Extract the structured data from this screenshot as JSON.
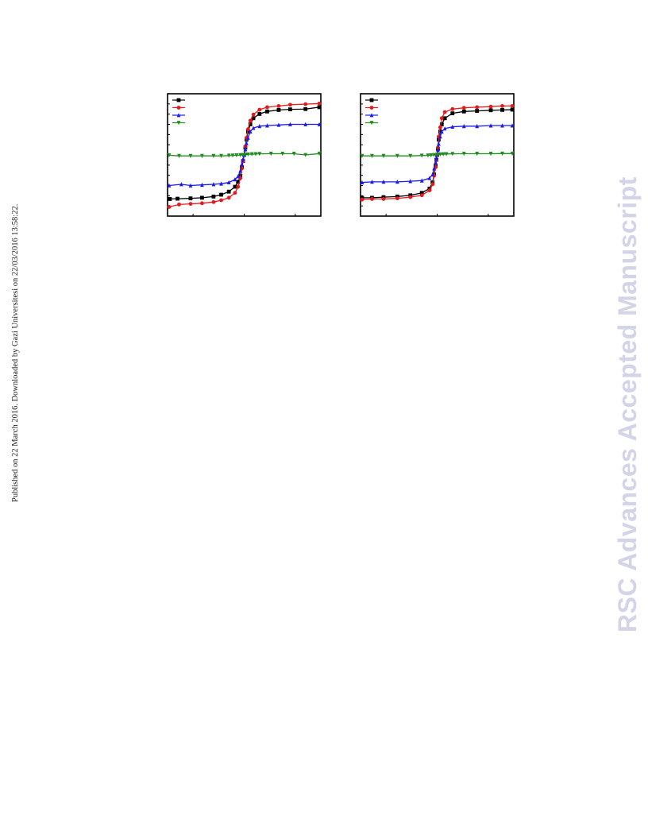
{
  "page": {
    "side_note": "Published on 22 March 2016. Downloaded by Gazi Universitesi on 22/03/2016 13:58:22.",
    "watermark": "RSC Advances Accepted Manuscript"
  },
  "chart_data": [
    {
      "type": "line",
      "title": "",
      "xlabel": "",
      "ylabel": "",
      "xlim": [
        -1.0,
        1.0
      ],
      "ylim": [
        -1.0,
        1.0
      ],
      "grid": false,
      "legend": "top-left",
      "x_ticks": [
        -0.667,
        0,
        0.667
      ],
      "y_ticks": [
        -1.0,
        -0.833,
        -0.667,
        -0.5,
        -0.333,
        -0.167,
        0,
        0.167,
        0.333,
        0.5,
        0.667,
        0.833,
        1.0
      ],
      "series": [
        {
          "color": "#000000",
          "marker": "square",
          "x": [
            -0.97,
            -0.87,
            -0.7,
            -0.55,
            -0.4,
            -0.3,
            -0.2,
            -0.12,
            -0.08,
            -0.05,
            -0.03,
            -0.015,
            0,
            0.015,
            0.03,
            0.05,
            0.08,
            0.12,
            0.2,
            0.3,
            0.45,
            0.6,
            0.8,
            0.98
          ],
          "y": [
            -0.72,
            -0.715,
            -0.71,
            -0.7,
            -0.68,
            -0.65,
            -0.6,
            -0.52,
            -0.44,
            -0.34,
            -0.2,
            -0.1,
            0,
            0.12,
            0.25,
            0.38,
            0.5,
            0.6,
            0.67,
            0.71,
            0.735,
            0.745,
            0.75,
            0.78
          ]
        },
        {
          "color": "#e41a1c",
          "marker": "circle",
          "x": [
            -0.98,
            -0.85,
            -0.7,
            -0.55,
            -0.4,
            -0.3,
            -0.2,
            -0.12,
            -0.08,
            -0.05,
            -0.03,
            -0.015,
            0,
            0.015,
            0.03,
            0.05,
            0.08,
            0.12,
            0.2,
            0.3,
            0.45,
            0.6,
            0.8,
            0.98
          ],
          "y": [
            -0.85,
            -0.81,
            -0.8,
            -0.79,
            -0.77,
            -0.74,
            -0.7,
            -0.62,
            -0.52,
            -0.38,
            -0.22,
            -0.1,
            0,
            0.14,
            0.28,
            0.42,
            0.56,
            0.66,
            0.74,
            0.78,
            0.8,
            0.82,
            0.83,
            0.84
          ]
        },
        {
          "color": "#1a1aee",
          "marker": "triangle-up",
          "x": [
            -0.98,
            -0.82,
            -0.7,
            -0.55,
            -0.4,
            -0.3,
            -0.2,
            -0.12,
            -0.08,
            -0.05,
            -0.03,
            -0.015,
            0,
            0.015,
            0.03,
            0.05,
            0.08,
            0.12,
            0.2,
            0.3,
            0.45,
            0.6,
            0.8,
            0.98
          ],
          "y": [
            -0.5,
            -0.48,
            -0.5,
            -0.49,
            -0.48,
            -0.47,
            -0.45,
            -0.4,
            -0.35,
            -0.26,
            -0.15,
            -0.07,
            0,
            0.09,
            0.19,
            0.28,
            0.38,
            0.44,
            0.47,
            0.48,
            0.49,
            0.5,
            0.5,
            0.5
          ]
        },
        {
          "color": "#1e8c1e",
          "marker": "triangle-down",
          "x": [
            -0.98,
            -0.85,
            -0.7,
            -0.55,
            -0.4,
            -0.3,
            -0.2,
            -0.15,
            -0.1,
            -0.05,
            -0.02,
            0,
            0.02,
            0.05,
            0.1,
            0.15,
            0.2,
            0.35,
            0.5,
            0.65,
            0.8,
            0.98
          ],
          "y": [
            -0.005,
            -0.015,
            -0.015,
            -0.015,
            -0.015,
            -0.015,
            -0.01,
            -0.008,
            -0.005,
            -0.002,
            0.0,
            0.0,
            0.005,
            0.01,
            0.012,
            0.015,
            0.018,
            0.02,
            0.02,
            0.02,
            0.0,
            0.022
          ]
        }
      ]
    },
    {
      "type": "line",
      "title": "",
      "xlabel": "",
      "ylabel": "",
      "xlim": [
        -1.0,
        1.0
      ],
      "ylim": [
        -1.0,
        1.0
      ],
      "grid": false,
      "legend": "top-left",
      "x_ticks": [
        -0.667,
        0,
        0.667
      ],
      "y_ticks": [
        -1.0,
        -0.833,
        -0.667,
        -0.5,
        -0.333,
        -0.167,
        0,
        0.167,
        0.333,
        0.5,
        0.667,
        0.833,
        1.0
      ],
      "series": [
        {
          "color": "#000000",
          "marker": "square",
          "x": [
            -0.98,
            -0.85,
            -0.7,
            -0.52,
            -0.35,
            -0.2,
            -0.1,
            -0.06,
            -0.04,
            -0.02,
            -0.01,
            0,
            0.01,
            0.02,
            0.04,
            0.06,
            0.1,
            0.2,
            0.35,
            0.52,
            0.7,
            0.85,
            0.98
          ],
          "y": [
            -0.7,
            -0.7,
            -0.69,
            -0.68,
            -0.66,
            -0.62,
            -0.55,
            -0.45,
            -0.32,
            -0.18,
            -0.08,
            0,
            0.1,
            0.25,
            0.38,
            0.5,
            0.6,
            0.68,
            0.71,
            0.72,
            0.73,
            0.735,
            0.74
          ]
        },
        {
          "color": "#e41a1c",
          "marker": "circle",
          "x": [
            -0.98,
            -0.85,
            -0.7,
            -0.52,
            -0.35,
            -0.2,
            -0.1,
            -0.06,
            -0.04,
            -0.02,
            -0.01,
            0,
            0.01,
            0.02,
            0.04,
            0.06,
            0.1,
            0.2,
            0.35,
            0.52,
            0.7,
            0.85,
            0.98
          ],
          "y": [
            -0.73,
            -0.72,
            -0.72,
            -0.71,
            -0.69,
            -0.66,
            -0.58,
            -0.48,
            -0.34,
            -0.2,
            -0.08,
            0,
            0.12,
            0.3,
            0.45,
            0.6,
            0.7,
            0.75,
            0.77,
            0.78,
            0.79,
            0.8,
            0.8
          ]
        },
        {
          "color": "#1a1aee",
          "marker": "triangle-up",
          "x": [
            -0.98,
            -0.85,
            -0.7,
            -0.52,
            -0.35,
            -0.2,
            -0.1,
            -0.06,
            -0.04,
            -0.02,
            -0.01,
            0,
            0.01,
            0.02,
            0.04,
            0.06,
            0.1,
            0.2,
            0.35,
            0.52,
            0.7,
            0.85,
            0.98
          ],
          "y": [
            -0.45,
            -0.44,
            -0.44,
            -0.44,
            -0.43,
            -0.42,
            -0.38,
            -0.32,
            -0.22,
            -0.12,
            -0.05,
            0,
            0.08,
            0.18,
            0.3,
            0.38,
            0.43,
            0.46,
            0.47,
            0.47,
            0.48,
            0.48,
            0.48
          ]
        },
        {
          "color": "#1e8c1e",
          "marker": "triangle-down",
          "x": [
            -0.98,
            -0.85,
            -0.7,
            -0.52,
            -0.35,
            -0.2,
            -0.12,
            -0.08,
            -0.04,
            0,
            0.04,
            0.08,
            0.12,
            0.2,
            0.35,
            0.52,
            0.7,
            0.85,
            0.98
          ],
          "y": [
            -0.015,
            -0.015,
            -0.015,
            -0.015,
            -0.015,
            -0.01,
            -0.008,
            -0.005,
            0.0,
            0.005,
            0.01,
            0.012,
            0.015,
            0.018,
            0.02,
            0.02,
            0.02,
            0.022,
            0.022
          ]
        }
      ]
    }
  ]
}
